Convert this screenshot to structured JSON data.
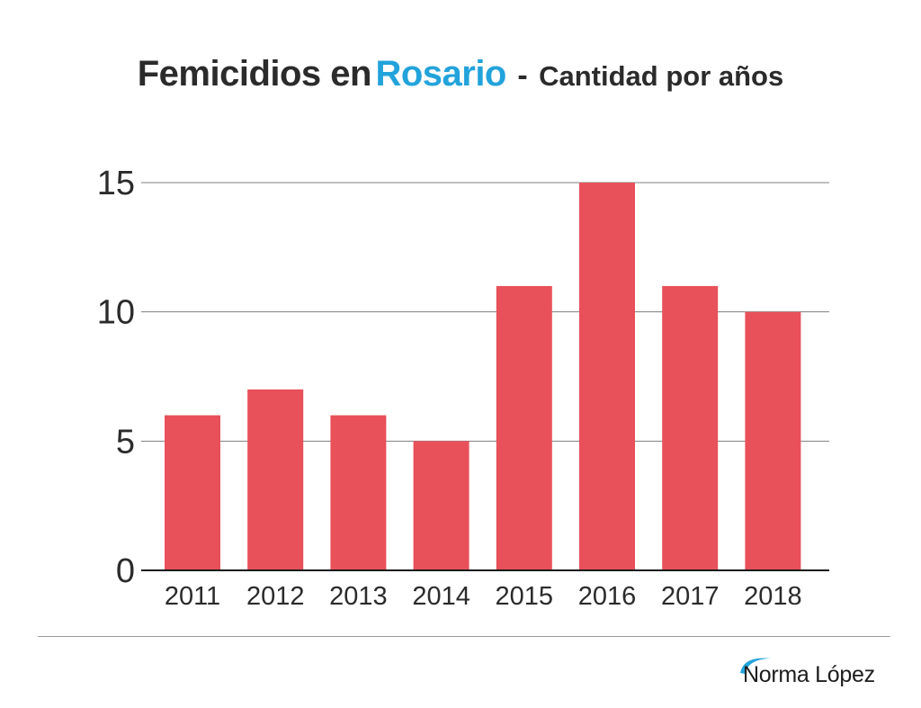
{
  "title": {
    "main": "Femicidios en",
    "accent": "Rosario",
    "separator": "-",
    "subtitle": "Cantidad por años"
  },
  "brand": {
    "name": "Norma López",
    "icon": "swoosh-icon"
  },
  "colors": {
    "bar": "#e8515a",
    "accent": "#23a3db",
    "text": "#2b2b2b",
    "grid": "#7f7f7f",
    "axis": "#1a1a1a"
  },
  "chart_data": {
    "type": "bar",
    "title": "Femicidios en Rosario - Cantidad por años",
    "xlabel": "",
    "ylabel": "",
    "categories": [
      "2011",
      "2012",
      "2013",
      "2014",
      "2015",
      "2016",
      "2017",
      "2018"
    ],
    "values": [
      6,
      7,
      6,
      5,
      11,
      15,
      11,
      10
    ],
    "ylim": [
      0,
      15
    ],
    "yticks": [
      "0",
      "5",
      "10",
      "15"
    ],
    "grid": true,
    "legend": "none"
  }
}
